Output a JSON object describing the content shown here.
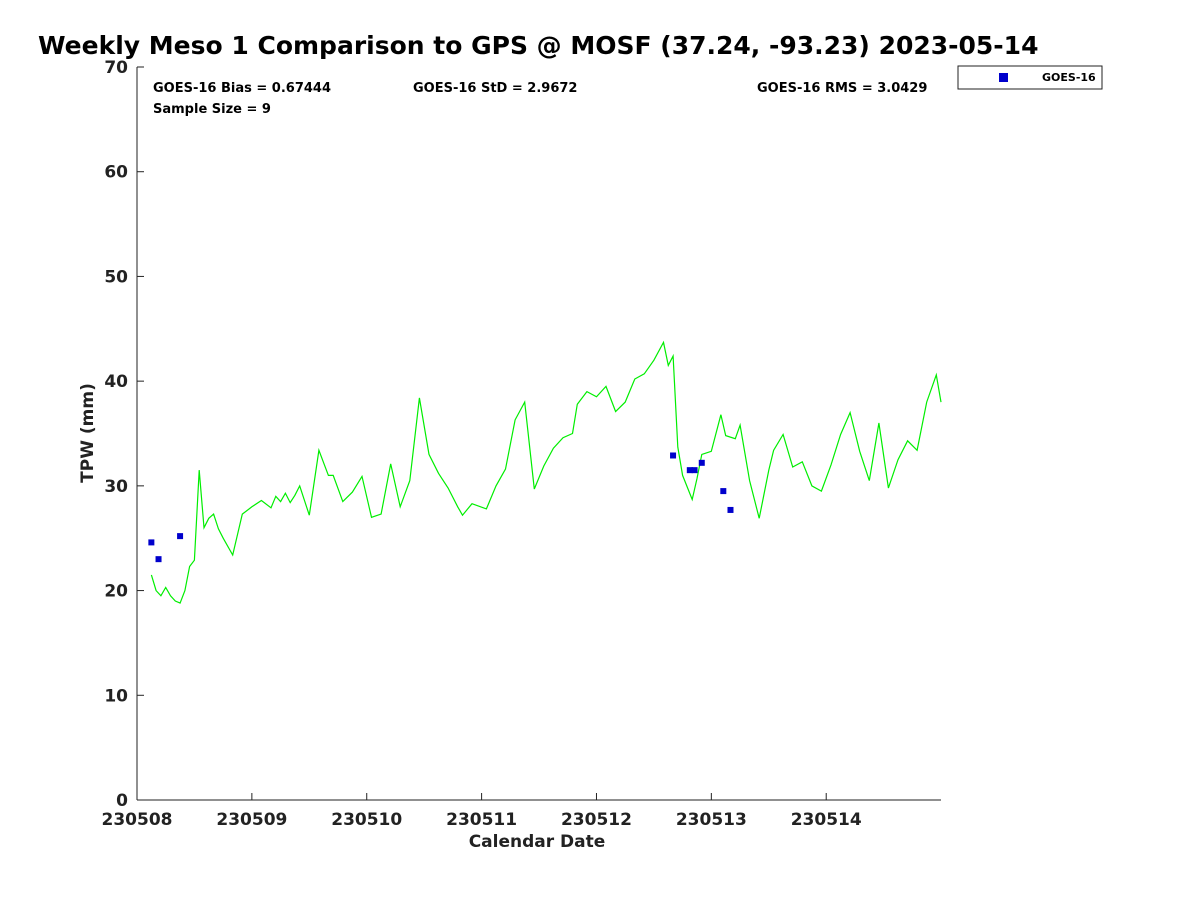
{
  "chart_data": {
    "type": "scatter",
    "title": "Weekly Meso 1 Comparison to GPS @ MOSF (37.24, -93.23) 2023-05-14",
    "xlabel": "Calendar Date",
    "ylabel": "TPW (mm)",
    "xlim": [
      "2023-05-08",
      "2023-05-14T23:59"
    ],
    "ylim": [
      0,
      70
    ],
    "xticks": [
      "2023-05-08",
      "2023-05-09",
      "2023-05-10",
      "2023-05-11",
      "2023-05-12",
      "2023-05-13",
      "2023-05-14"
    ],
    "xtick_labels": [
      "230508",
      "230509",
      "230510",
      "230511",
      "230512",
      "230513",
      "230514"
    ],
    "yticks": [
      0,
      10,
      20,
      30,
      40,
      50,
      60,
      70
    ],
    "grid": false,
    "legend_position": "top-right",
    "stats": {
      "bias": "GOES-16 Bias = 0.67444",
      "std": "GOES-16 StD = 2.9672",
      "rms": "GOES-16 RMS = 3.0429",
      "sample": "Sample Size = 9"
    },
    "colors": {
      "goes": "#0000cc",
      "gps": "#00ee00"
    },
    "series": [
      {
        "name": "GOES-16",
        "kind": "scatter",
        "x": [
          "2023-05-08T03:00",
          "2023-05-08T04:30",
          "2023-05-08T09:00",
          "2023-05-12T16:00",
          "2023-05-12T19:30",
          "2023-05-12T20:30",
          "2023-05-12T22:00",
          "2023-05-13T02:30",
          "2023-05-13T04:00"
        ],
        "y": [
          24.6,
          23.0,
          25.2,
          32.9,
          31.5,
          31.5,
          32.2,
          29.5,
          27.7
        ]
      },
      {
        "kind": "line",
        "x": [
          "2023-05-08T03:00",
          "2023-05-08T04:00",
          "2023-05-08T05:00",
          "2023-05-08T06:00",
          "2023-05-08T07:00",
          "2023-05-08T08:00",
          "2023-05-08T09:00",
          "2023-05-08T10:00",
          "2023-05-08T11:00",
          "2023-05-08T12:00",
          "2023-05-08T13:00",
          "2023-05-08T14:00",
          "2023-05-08T15:00",
          "2023-05-08T16:00",
          "2023-05-08T17:00",
          "2023-05-08T18:00",
          "2023-05-08T20:00",
          "2023-05-08T22:00",
          "2023-05-09T00:00",
          "2023-05-09T02:00",
          "2023-05-09T04:00",
          "2023-05-09T05:00",
          "2023-05-09T06:00",
          "2023-05-09T07:00",
          "2023-05-09T08:00",
          "2023-05-09T09:00",
          "2023-05-09T10:00",
          "2023-05-09T12:00",
          "2023-05-09T14:00",
          "2023-05-09T16:00",
          "2023-05-09T17:00",
          "2023-05-09T19:00",
          "2023-05-09T21:00",
          "2023-05-09T23:00",
          "2023-05-10T01:00",
          "2023-05-10T03:00",
          "2023-05-10T05:00",
          "2023-05-10T07:00",
          "2023-05-10T09:00",
          "2023-05-10T11:00",
          "2023-05-10T13:00",
          "2023-05-10T15:00",
          "2023-05-10T17:00",
          "2023-05-10T19:00",
          "2023-05-10T20:00",
          "2023-05-10T22:00",
          "2023-05-11T01:00",
          "2023-05-11T03:00",
          "2023-05-11T05:00",
          "2023-05-11T07:00",
          "2023-05-11T09:00",
          "2023-05-11T11:00",
          "2023-05-11T13:00",
          "2023-05-11T15:00",
          "2023-05-11T17:00",
          "2023-05-11T19:00",
          "2023-05-11T20:00",
          "2023-05-11T22:00",
          "2023-05-12T00:00",
          "2023-05-12T02:00",
          "2023-05-12T04:00",
          "2023-05-12T06:00",
          "2023-05-12T08:00",
          "2023-05-12T10:00",
          "2023-05-12T12:00",
          "2023-05-12T14:00",
          "2023-05-12T15:00",
          "2023-05-12T16:00",
          "2023-05-12T17:00",
          "2023-05-12T18:00",
          "2023-05-12T20:00",
          "2023-05-12T21:00",
          "2023-05-12T22:00",
          "2023-05-13T00:00",
          "2023-05-13T02:00",
          "2023-05-13T03:00",
          "2023-05-13T05:00",
          "2023-05-13T06:00",
          "2023-05-13T08:00",
          "2023-05-13T10:00",
          "2023-05-13T12:00",
          "2023-05-13T13:00",
          "2023-05-13T15:00",
          "2023-05-13T17:00",
          "2023-05-13T19:00",
          "2023-05-13T21:00",
          "2023-05-13T23:00",
          "2023-05-14T01:00",
          "2023-05-14T03:00",
          "2023-05-14T05:00",
          "2023-05-14T07:00",
          "2023-05-14T09:00",
          "2023-05-14T11:00",
          "2023-05-14T13:00",
          "2023-05-14T15:00",
          "2023-05-14T17:00",
          "2023-05-14T19:00",
          "2023-05-14T21:00",
          "2023-05-14T23:00",
          "2023-05-14T23:59"
        ],
        "y": [
          21.5,
          20.0,
          19.5,
          20.3,
          19.5,
          19.0,
          18.8,
          20.0,
          22.3,
          22.9,
          31.5,
          26.0,
          26.9,
          27.3,
          25.9,
          25.0,
          23.4,
          27.3,
          28.0,
          28.6,
          27.9,
          29.0,
          28.5,
          29.3,
          28.4,
          29.1,
          30.0,
          27.2,
          33.4,
          31.0,
          31.0,
          28.5,
          29.4,
          30.9,
          27.0,
          27.3,
          32.1,
          28.0,
          30.5,
          38.4,
          33.0,
          31.2,
          29.8,
          28.0,
          27.2,
          28.3,
          27.8,
          30.0,
          31.6,
          36.3,
          38.0,
          29.7,
          31.9,
          33.6,
          34.6,
          35.0,
          37.8,
          39.0,
          38.5,
          39.5,
          37.1,
          38.0,
          40.2,
          40.7,
          42.0,
          43.7,
          41.5,
          42.4,
          33.7,
          31.0,
          28.7,
          30.7,
          33.0,
          33.3,
          36.8,
          34.8,
          34.5,
          35.8,
          30.5,
          26.9,
          31.5,
          33.4,
          34.9,
          31.8,
          32.3,
          30.0,
          29.5,
          32.0,
          34.9,
          37.0,
          33.3,
          30.5,
          36.0,
          29.8,
          32.5,
          34.3,
          33.4,
          38.0,
          40.6,
          38.0
        ]
      }
    ]
  }
}
